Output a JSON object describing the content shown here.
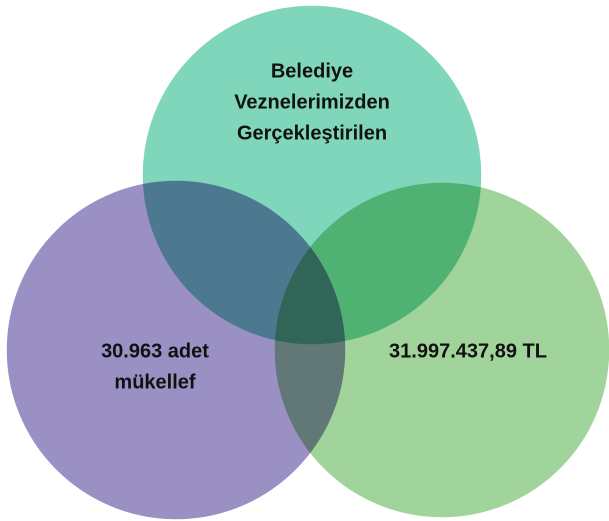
{
  "nodes": [
    {
      "lines": [
        "Belediye",
        "Veznelerimizden",
        "Gerçekleştirilen"
      ]
    },
    {
      "lines": [
        "30.963 adet",
        "mükellef"
      ]
    },
    {
      "lines": [
        "31.997.437,89 TL"
      ]
    }
  ]
}
